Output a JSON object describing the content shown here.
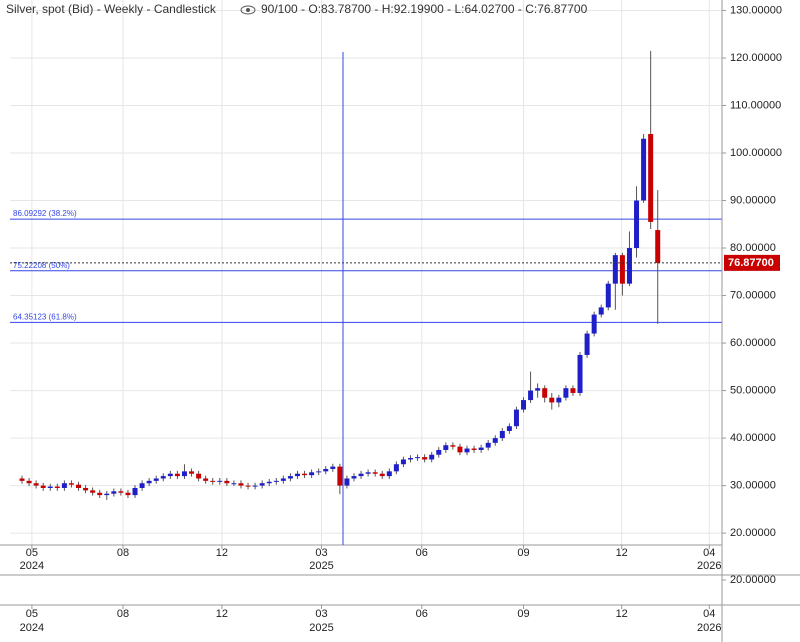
{
  "chart_data": {
    "type": "candlestick",
    "title": "Silver, spot (Bid) - Weekly - Candlestick",
    "subtitle": "90/100 - O:83.78700 - H:92.19900 - L:64.02700 - C:76.87700",
    "up_color": "#1f1fc8",
    "down_color": "#c80000",
    "level_color": "#3347e8",
    "grid": true,
    "open": [
      31.5,
      31.0,
      30.5,
      30.0,
      29.5,
      29.8,
      29.5,
      30.5,
      30.2,
      29.5,
      29.0,
      28.5,
      28.0,
      28.3,
      28.8,
      28.5,
      28.0,
      29.5,
      30.5,
      31.0,
      31.5,
      32.0,
      32.5,
      32.0,
      33.0,
      32.5,
      31.5,
      31.0,
      30.8,
      31.0,
      30.5,
      30.5,
      30.0,
      29.8,
      30.0,
      30.5,
      30.8,
      31.0,
      31.5,
      32.0,
      32.5,
      32.2,
      32.8,
      33.0,
      33.5,
      34.0,
      30.0,
      31.5,
      32.0,
      32.5,
      32.8,
      32.5,
      32.0,
      33.0,
      34.5,
      35.5,
      35.8,
      36.0,
      35.5,
      36.5,
      37.5,
      38.5,
      38.2,
      37.0,
      37.8,
      37.5,
      38.0,
      39.0,
      40.0,
      41.5,
      42.5,
      46.0,
      48.0,
      50.0,
      50.5,
      48.5,
      47.5,
      48.5,
      50.5,
      49.5,
      57.5,
      62.0,
      66.0,
      67.5,
      72.5,
      78.5,
      72.5,
      80.0,
      90.0,
      104.0,
      83.787
    ],
    "high": [
      32.1,
      31.6,
      31.1,
      30.6,
      30.4,
      30.4,
      31.1,
      31.1,
      30.8,
      30.1,
      29.6,
      29.1,
      28.9,
      29.4,
      29.4,
      29.1,
      30.1,
      31.1,
      31.6,
      32.1,
      32.6,
      33.1,
      33.1,
      34.5,
      33.6,
      33.1,
      32.1,
      31.6,
      31.6,
      31.6,
      31.1,
      31.1,
      30.6,
      30.6,
      31.1,
      31.4,
      31.6,
      32.1,
      32.6,
      33.1,
      33.1,
      33.4,
      33.6,
      34.1,
      34.6,
      34.6,
      32.1,
      32.6,
      33.1,
      33.4,
      33.4,
      33.1,
      33.6,
      35.1,
      36.1,
      36.4,
      36.6,
      36.6,
      37.1,
      38.1,
      39.1,
      39.1,
      38.8,
      38.4,
      38.4,
      38.6,
      39.6,
      40.6,
      42.1,
      43.1,
      46.6,
      48.6,
      54.0,
      51.5,
      51.1,
      49.5,
      49.1,
      51.1,
      51.1,
      58.1,
      62.6,
      66.6,
      68.1,
      73.1,
      79.0,
      79.0,
      83.5,
      93.0,
      104.0,
      121.5,
      92.199
    ],
    "low": [
      30.4,
      29.9,
      29.4,
      28.9,
      28.9,
      28.9,
      28.9,
      29.6,
      28.9,
      28.4,
      27.9,
      27.4,
      27.0,
      27.7,
      27.9,
      27.4,
      27.4,
      28.9,
      29.9,
      30.4,
      30.9,
      31.4,
      31.4,
      31.4,
      31.9,
      30.9,
      30.4,
      30.2,
      30.2,
      29.9,
      29.9,
      29.4,
      29.2,
      29.2,
      29.4,
      29.9,
      30.2,
      30.4,
      30.9,
      31.4,
      31.6,
      31.6,
      32.2,
      32.4,
      32.9,
      28.2,
      29.4,
      30.9,
      31.4,
      31.9,
      31.9,
      31.4,
      31.4,
      32.4,
      33.9,
      34.9,
      35.2,
      34.9,
      34.9,
      35.9,
      36.9,
      37.6,
      36.4,
      36.4,
      36.9,
      36.9,
      37.4,
      38.4,
      39.4,
      40.9,
      41.9,
      45.4,
      47.4,
      48.5,
      47.5,
      46.0,
      46.5,
      47.9,
      48.9,
      48.9,
      56.9,
      61.4,
      65.4,
      66.9,
      67.0,
      70.0,
      72.0,
      78.0,
      89.5,
      84.0,
      64.027
    ],
    "close": [
      31.0,
      30.5,
      30.0,
      29.5,
      29.8,
      29.5,
      30.5,
      30.2,
      29.5,
      29.0,
      28.5,
      28.0,
      28.3,
      28.8,
      28.5,
      28.0,
      29.5,
      30.5,
      31.0,
      31.5,
      32.0,
      32.5,
      32.0,
      33.0,
      32.5,
      31.5,
      31.0,
      30.8,
      31.0,
      30.5,
      30.5,
      30.0,
      29.8,
      30.0,
      30.5,
      30.8,
      31.0,
      31.5,
      32.0,
      32.5,
      32.2,
      32.8,
      33.0,
      33.5,
      34.0,
      30.0,
      31.5,
      32.0,
      32.5,
      32.8,
      32.5,
      32.0,
      33.0,
      34.5,
      35.5,
      35.8,
      36.0,
      35.5,
      36.5,
      37.5,
      38.5,
      38.2,
      37.0,
      37.8,
      37.5,
      38.0,
      39.0,
      40.0,
      41.5,
      42.5,
      46.0,
      48.0,
      50.0,
      50.5,
      48.5,
      47.5,
      48.5,
      50.5,
      49.5,
      57.5,
      62.0,
      66.0,
      67.5,
      72.5,
      78.5,
      72.5,
      80.0,
      90.0,
      103.0,
      85.5,
      76.877
    ],
    "xlim": [
      -1.7,
      99.1
    ],
    "xticks": [
      {
        "value": 1.4,
        "label": "05",
        "sublabel": "2024"
      },
      {
        "value": 14.3,
        "label": "08"
      },
      {
        "value": 28.3,
        "label": "12"
      },
      {
        "value": 42.4,
        "label": "03",
        "sublabel": "2025"
      },
      {
        "value": 56.6,
        "label": "06"
      },
      {
        "value": 71.0,
        "label": "09"
      },
      {
        "value": 84.9,
        "label": "12"
      },
      {
        "value": 97.3,
        "label": "04",
        "sublabel": "2026"
      }
    ],
    "ylim": [
      17.5,
      132.2
    ],
    "yticks": [
      {
        "value": 20,
        "label": "20.00000"
      },
      {
        "value": 30,
        "label": "30.00000"
      },
      {
        "value": 40,
        "label": "40.00000"
      },
      {
        "value": 50,
        "label": "50.00000"
      },
      {
        "value": 60,
        "label": "60.00000"
      },
      {
        "value": 70,
        "label": "70.00000"
      },
      {
        "value": 80,
        "label": "80.00000"
      },
      {
        "value": 90,
        "label": "90.00000"
      },
      {
        "value": 100,
        "label": "100.00000"
      },
      {
        "value": 110,
        "label": "110.00000"
      },
      {
        "value": 120,
        "label": "120.00000"
      },
      {
        "value": 130,
        "label": "130.00000"
      }
    ],
    "levels": [
      {
        "value": 86.09292,
        "label": "86.09292 (38.2%)"
      },
      {
        "value": 75.22208,
        "label": "75.22208 (50%)"
      },
      {
        "value": 64.35123,
        "label": "64.35123 (61.8%)"
      }
    ],
    "last": {
      "value": 76.877,
      "label": "76.87700"
    },
    "lower_panel": {
      "yticks": [
        {
          "value": 20,
          "label": "20.00000"
        }
      ]
    }
  }
}
